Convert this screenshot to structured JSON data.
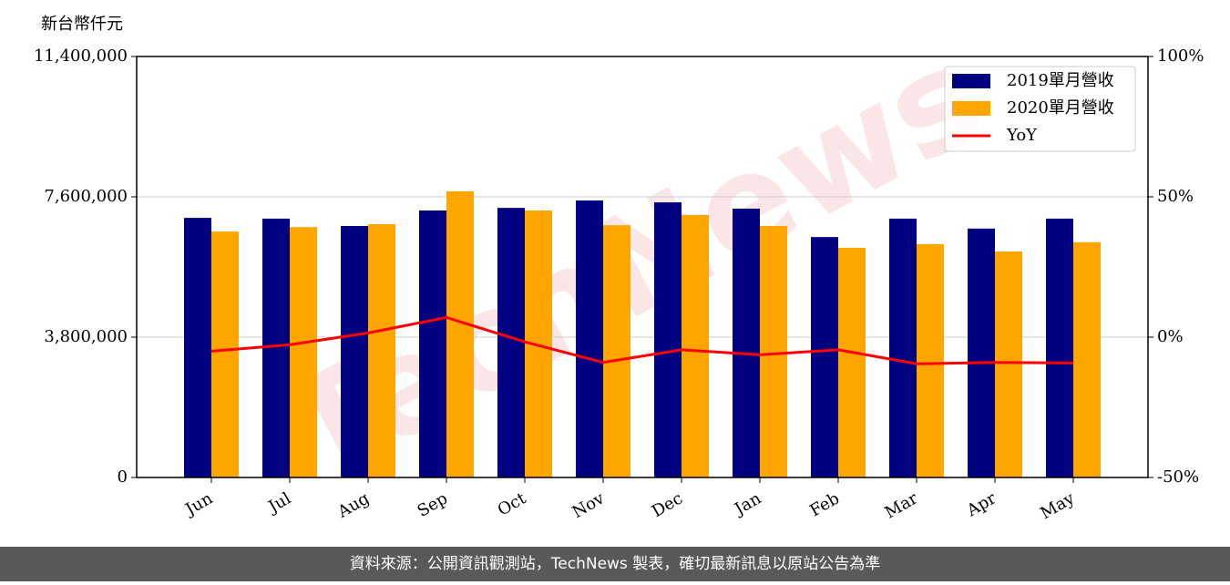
{
  "chart_data": {
    "type": "bar-line",
    "y_label": "新台幣仟元",
    "watermark": "TechNews",
    "source": "資料來源：公開資訊觀測站，TechNews 製表，確切最新訊息以原站公告為準",
    "categories": [
      "Jun",
      "Jul",
      "Aug",
      "Sep",
      "Oct",
      "Nov",
      "Dec",
      "Jan",
      "Feb",
      "Mar",
      "Apr",
      "May"
    ],
    "series": [
      {
        "name": "2019單月營收",
        "color": "#000080",
        "kind": "bar",
        "values": [
          7030000,
          7010000,
          6810000,
          7230000,
          7300000,
          7500000,
          7450000,
          7280000,
          6510000,
          7010000,
          6740000,
          7010000
        ]
      },
      {
        "name": "2020單月營收",
        "color": "#ffa500",
        "kind": "bar",
        "values": [
          6660000,
          6780000,
          6860000,
          7750000,
          7230000,
          6830000,
          7110000,
          6810000,
          6220000,
          6320000,
          6120000,
          6370000
        ]
      },
      {
        "name": "YoY",
        "color": "#ff0000",
        "kind": "line",
        "axis": "y2",
        "values": [
          -5,
          -2.7,
          1.5,
          7,
          -1.7,
          -9,
          -4.5,
          -6.3,
          -4.5,
          -9.5,
          -9,
          -9.2
        ]
      }
    ],
    "ylim": [
      0,
      11400000
    ],
    "yticks": [
      0,
      {
        "value": 3800000,
        "label": "3,800,000"
      },
      {
        "value": 7600000,
        "label": "7,600,000"
      },
      {
        "value": 11400000,
        "label": "11,400,000"
      }
    ],
    "y2lim": [
      -50,
      100
    ],
    "y2ticks": [
      {
        "value": -50,
        "label": "-50%"
      },
      {
        "value": 0,
        "label": "0%"
      },
      {
        "value": 50,
        "label": "50%"
      },
      {
        "value": 100,
        "label": "100%"
      }
    ],
    "grid": true,
    "legend": "upper right"
  }
}
